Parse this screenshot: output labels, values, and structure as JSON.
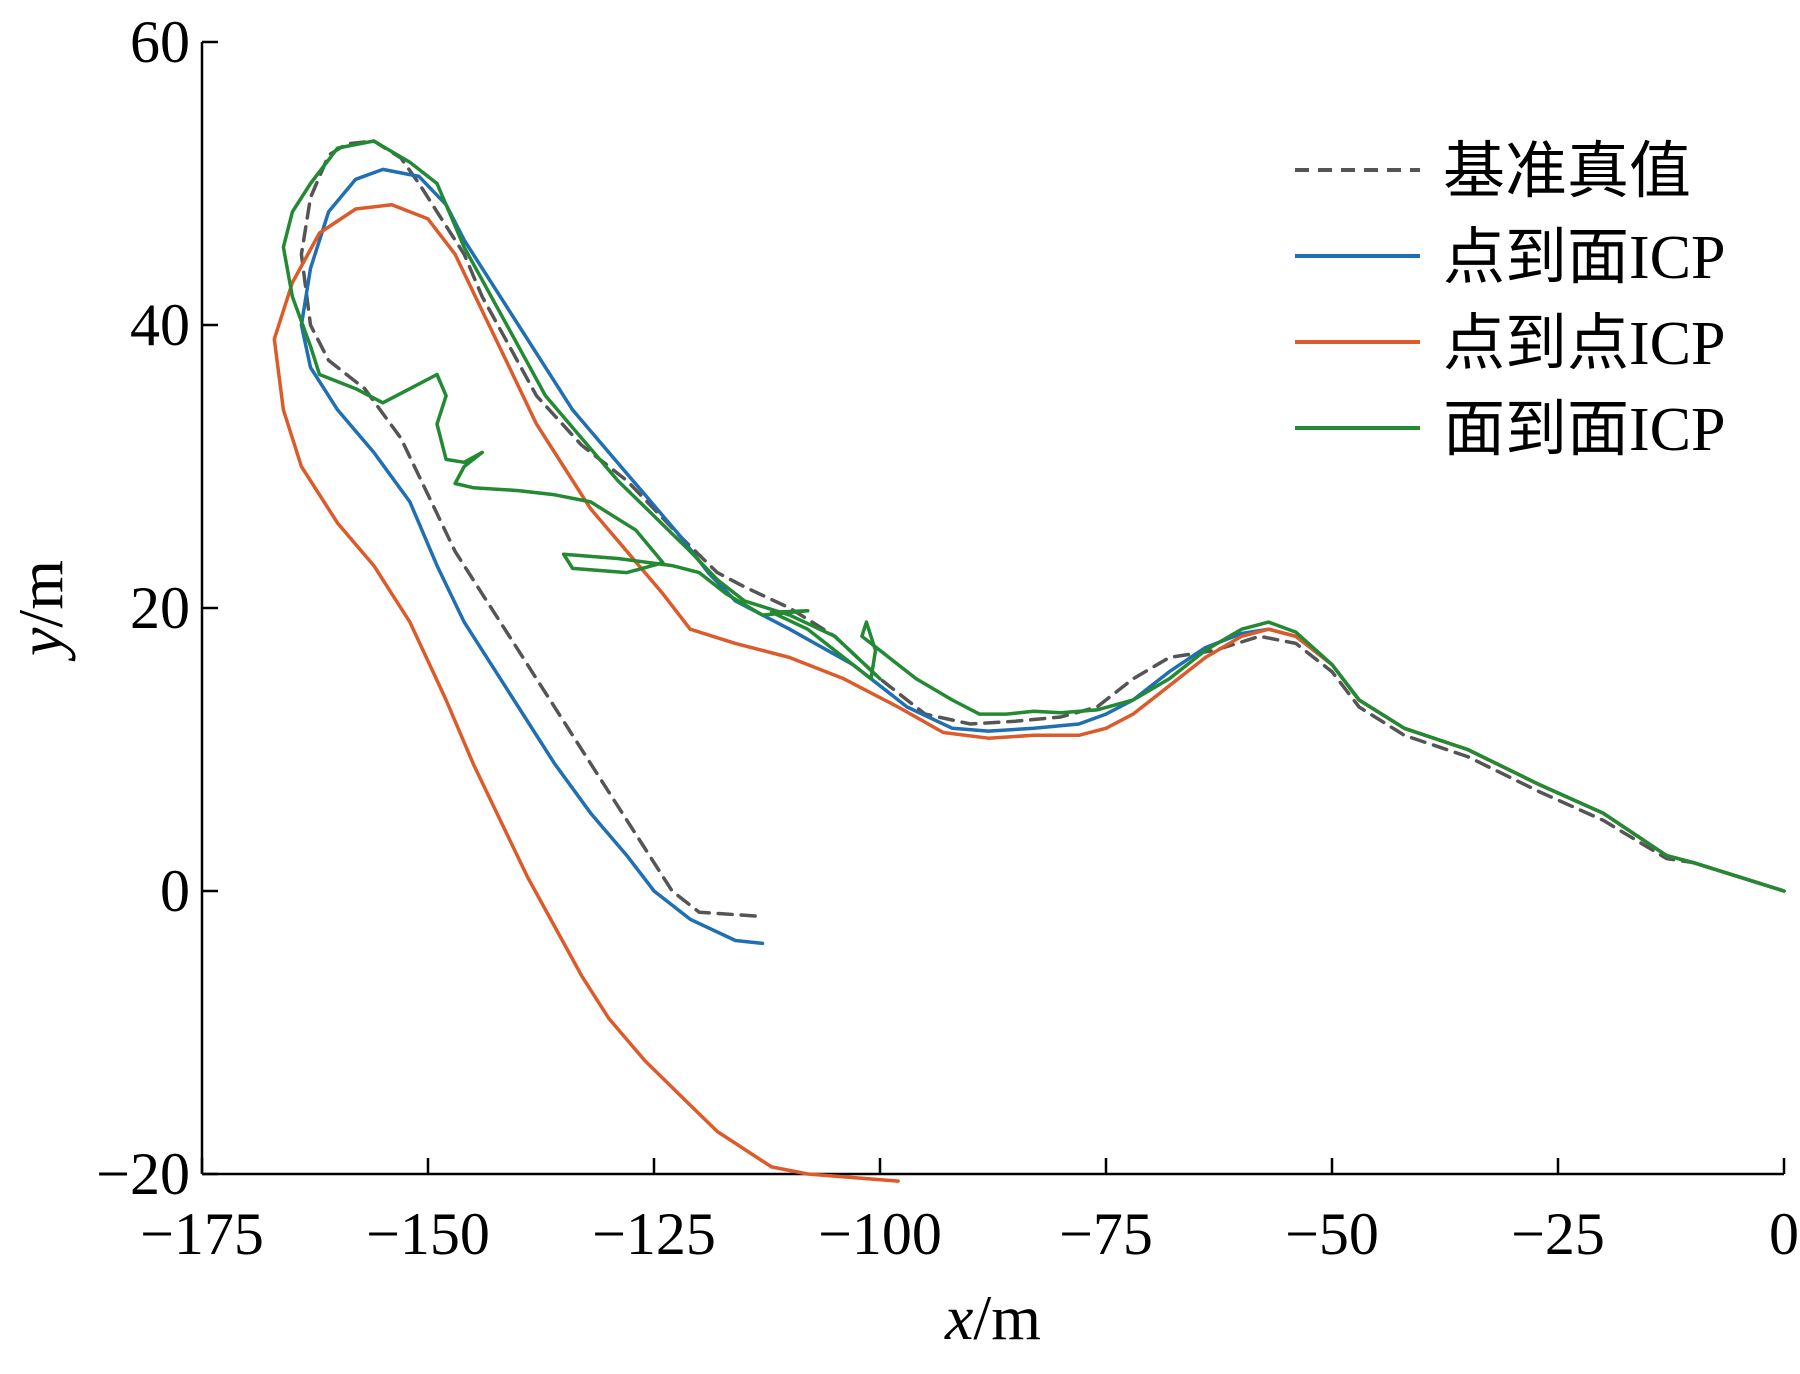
{
  "chart_data": {
    "type": "line",
    "title": "",
    "xlabel": "x/m",
    "ylabel": "y/m",
    "xlim": [
      -175,
      0
    ],
    "ylim": [
      -20,
      60
    ],
    "xticks": [
      -175,
      -150,
      -125,
      -100,
      -75,
      -50,
      -25,
      0
    ],
    "yticks": [
      -20,
      0,
      20,
      40,
      60
    ],
    "xtick_labels": [
      "−175",
      "−150",
      "−125",
      "−100",
      "−75",
      "−50",
      "−25",
      "0"
    ],
    "ytick_labels": [
      "−20",
      "0",
      "20",
      "40",
      "60"
    ],
    "grid": false,
    "legend_position": "top-right",
    "series": [
      {
        "name": "基准真值",
        "color": "#555555",
        "dash": true,
        "points": [
          [
            0,
            0
          ],
          [
            -5,
            1
          ],
          [
            -10,
            2
          ],
          [
            -13,
            2.3
          ],
          [
            -20,
            5
          ],
          [
            -27,
            7
          ],
          [
            -35,
            9.5
          ],
          [
            -42,
            11
          ],
          [
            -47,
            13
          ],
          [
            -50,
            15.5
          ],
          [
            -54,
            17.5
          ],
          [
            -58,
            18
          ],
          [
            -63,
            17
          ],
          [
            -68,
            16.5
          ],
          [
            -72,
            15
          ],
          [
            -76,
            13
          ],
          [
            -80,
            12.3
          ],
          [
            -85,
            12
          ],
          [
            -90,
            11.8
          ],
          [
            -95,
            12.5
          ],
          [
            -100,
            15
          ],
          [
            -105,
            18
          ],
          [
            -110,
            20
          ],
          [
            -115,
            21.5
          ],
          [
            -118,
            22.5
          ],
          [
            -122,
            25
          ],
          [
            -125,
            27
          ],
          [
            -128,
            29
          ],
          [
            -133,
            31.5
          ],
          [
            -138,
            35
          ],
          [
            -141,
            38.5
          ],
          [
            -144,
            42
          ],
          [
            -146,
            45
          ],
          [
            -149,
            48
          ],
          [
            -151,
            50
          ],
          [
            -153,
            51.8
          ],
          [
            -156,
            53
          ],
          [
            -159,
            52.8
          ],
          [
            -161,
            52
          ],
          [
            -163,
            49
          ],
          [
            -164,
            45
          ],
          [
            -163,
            40
          ],
          [
            -161,
            37.5
          ],
          [
            -157,
            35.5
          ],
          [
            -153,
            32
          ],
          [
            -150,
            28
          ],
          [
            -147,
            24
          ],
          [
            -144,
            21
          ],
          [
            -141,
            18
          ],
          [
            -138,
            15
          ],
          [
            -135,
            12
          ],
          [
            -132,
            9
          ],
          [
            -129,
            6
          ],
          [
            -126,
            3
          ],
          [
            -123,
            0
          ],
          [
            -120,
            -1.5
          ],
          [
            -113,
            -1.8
          ]
        ]
      },
      {
        "name": "点到面ICP",
        "color": "#1f6fb2",
        "dash": false,
        "points": [
          [
            0,
            0
          ],
          [
            -5,
            1
          ],
          [
            -10,
            2
          ],
          [
            -13,
            2.5
          ],
          [
            -20,
            5.5
          ],
          [
            -27,
            7.5
          ],
          [
            -35,
            10
          ],
          [
            -42,
            11.5
          ],
          [
            -47,
            13.5
          ],
          [
            -50,
            16
          ],
          [
            -54,
            18
          ],
          [
            -57,
            18.5
          ],
          [
            -60,
            18.2
          ],
          [
            -64,
            17.2
          ],
          [
            -68,
            15.5
          ],
          [
            -72,
            13.5
          ],
          [
            -75,
            12.5
          ],
          [
            -78,
            11.8
          ],
          [
            -83,
            11.5
          ],
          [
            -88,
            11.3
          ],
          [
            -92,
            11.5
          ],
          [
            -97,
            13
          ],
          [
            -103,
            16
          ],
          [
            -110,
            18.5
          ],
          [
            -116,
            20.5
          ],
          [
            -119,
            22.5
          ],
          [
            -122,
            25
          ],
          [
            -126,
            28
          ],
          [
            -130,
            31
          ],
          [
            -134,
            34
          ],
          [
            -137,
            37
          ],
          [
            -140,
            40
          ],
          [
            -143,
            43
          ],
          [
            -146,
            46
          ],
          [
            -148,
            48.5
          ],
          [
            -151,
            50.5
          ],
          [
            -155,
            51
          ],
          [
            -158,
            50.3
          ],
          [
            -161,
            48
          ],
          [
            -163,
            44
          ],
          [
            -164,
            40
          ],
          [
            -163,
            37
          ],
          [
            -160,
            34
          ],
          [
            -156,
            31
          ],
          [
            -152,
            27.5
          ],
          [
            -149,
            23
          ],
          [
            -146,
            19
          ],
          [
            -143,
            16
          ],
          [
            -140,
            13
          ],
          [
            -136,
            9
          ],
          [
            -132,
            5.5
          ],
          [
            -128,
            2.5
          ],
          [
            -125,
            0
          ],
          [
            -121,
            -2
          ],
          [
            -116,
            -3.5
          ],
          [
            -113,
            -3.7
          ]
        ]
      },
      {
        "name": "点到点ICP",
        "color": "#dd5a2a",
        "dash": false,
        "points": [
          [
            0,
            0
          ],
          [
            -5,
            1
          ],
          [
            -10,
            2
          ],
          [
            -13,
            2.5
          ],
          [
            -20,
            5.5
          ],
          [
            -27,
            7.5
          ],
          [
            -35,
            10
          ],
          [
            -42,
            11.5
          ],
          [
            -47,
            13.5
          ],
          [
            -50,
            16
          ],
          [
            -54,
            18
          ],
          [
            -57,
            18.5
          ],
          [
            -60,
            18
          ],
          [
            -64,
            16.5
          ],
          [
            -68,
            14.5
          ],
          [
            -72,
            12.5
          ],
          [
            -75,
            11.5
          ],
          [
            -78,
            11
          ],
          [
            -83,
            11
          ],
          [
            -88,
            10.8
          ],
          [
            -93,
            11.2
          ],
          [
            -98,
            13
          ],
          [
            -104,
            15
          ],
          [
            -110,
            16.5
          ],
          [
            -116,
            17.5
          ],
          [
            -121,
            18.5
          ],
          [
            -124,
            21
          ],
          [
            -128,
            24
          ],
          [
            -132,
            27
          ],
          [
            -135,
            30
          ],
          [
            -138,
            33
          ],
          [
            -141,
            37
          ],
          [
            -144,
            41
          ],
          [
            -147,
            45
          ],
          [
            -150,
            47.5
          ],
          [
            -154,
            48.5
          ],
          [
            -158,
            48.2
          ],
          [
            -162,
            46.5
          ],
          [
            -165,
            43
          ],
          [
            -167,
            39
          ],
          [
            -166,
            34
          ],
          [
            -164,
            30
          ],
          [
            -160,
            26
          ],
          [
            -156,
            23
          ],
          [
            -152,
            19
          ],
          [
            -148,
            13.5
          ],
          [
            -145,
            9
          ],
          [
            -142,
            5
          ],
          [
            -139,
            1
          ],
          [
            -136,
            -2.5
          ],
          [
            -133,
            -6
          ],
          [
            -130,
            -9
          ],
          [
            -126,
            -12
          ],
          [
            -122,
            -14.5
          ],
          [
            -118,
            -17
          ],
          [
            -112,
            -19.5
          ],
          [
            -108,
            -20
          ],
          [
            -98,
            -20.5
          ]
        ]
      },
      {
        "name": "面到面ICP",
        "color": "#238a33",
        "dash": false,
        "points": [
          [
            0,
            0
          ],
          [
            -5,
            1
          ],
          [
            -10,
            2
          ],
          [
            -13,
            2.5
          ],
          [
            -20,
            5.5
          ],
          [
            -27,
            7.5
          ],
          [
            -35,
            10
          ],
          [
            -42,
            11.5
          ],
          [
            -47,
            13.5
          ],
          [
            -50,
            16
          ],
          [
            -54,
            18.3
          ],
          [
            -57,
            19
          ],
          [
            -60,
            18.5
          ],
          [
            -64,
            17
          ],
          [
            -68,
            15
          ],
          [
            -72,
            13.5
          ],
          [
            -76,
            12.8
          ],
          [
            -80,
            12.6
          ],
          [
            -83,
            12.7
          ],
          [
            -86,
            12.5
          ],
          [
            -89,
            12.5
          ],
          [
            -92,
            13.5
          ],
          [
            -96,
            15
          ],
          [
            -99,
            16.5
          ],
          [
            -102,
            18
          ],
          [
            -101.5,
            19
          ],
          [
            -100.5,
            17
          ],
          [
            -101,
            15
          ],
          [
            -104,
            16.5
          ],
          [
            -108,
            18.5
          ],
          [
            -112,
            19.7
          ],
          [
            -108,
            19.8
          ],
          [
            -113,
            19.5
          ],
          [
            -117,
            21
          ],
          [
            -120,
            22.5
          ],
          [
            -123,
            23
          ],
          [
            -129,
            23.5
          ],
          [
            -135,
            23.8
          ],
          [
            -134,
            22.8
          ],
          [
            -128,
            22.5
          ],
          [
            -124,
            23.2
          ],
          [
            -127,
            25.5
          ],
          [
            -132,
            27.5
          ],
          [
            -136,
            28
          ],
          [
            -140,
            28.3
          ],
          [
            -145,
            28.5
          ],
          [
            -147,
            28.8
          ],
          [
            -146,
            30
          ],
          [
            -144,
            31
          ],
          [
            -146,
            30.3
          ],
          [
            -148,
            30.5
          ],
          [
            -149,
            33
          ],
          [
            -148,
            35
          ],
          [
            -149,
            36.5
          ],
          [
            -152,
            35.5
          ],
          [
            -155,
            34.5
          ],
          [
            -158,
            35.5
          ],
          [
            -162,
            36.5
          ],
          [
            -163,
            38.5
          ],
          [
            -165,
            42
          ],
          [
            -166,
            45.5
          ],
          [
            -165,
            48
          ],
          [
            -163,
            50
          ],
          [
            -160,
            52.5
          ],
          [
            -156,
            53
          ],
          [
            -152,
            51.5
          ],
          [
            -149,
            50
          ],
          [
            -146,
            45.5
          ],
          [
            -143,
            42
          ],
          [
            -140,
            38.5
          ],
          [
            -137,
            35
          ],
          [
            -133,
            32
          ],
          [
            -129,
            29
          ],
          [
            -125,
            26.5
          ],
          [
            -121,
            24
          ],
          [
            -118,
            22
          ],
          [
            -115,
            20.5
          ],
          [
            -110,
            19.5
          ],
          [
            -105,
            18
          ],
          [
            -100,
            15
          ]
        ]
      }
    ]
  }
}
